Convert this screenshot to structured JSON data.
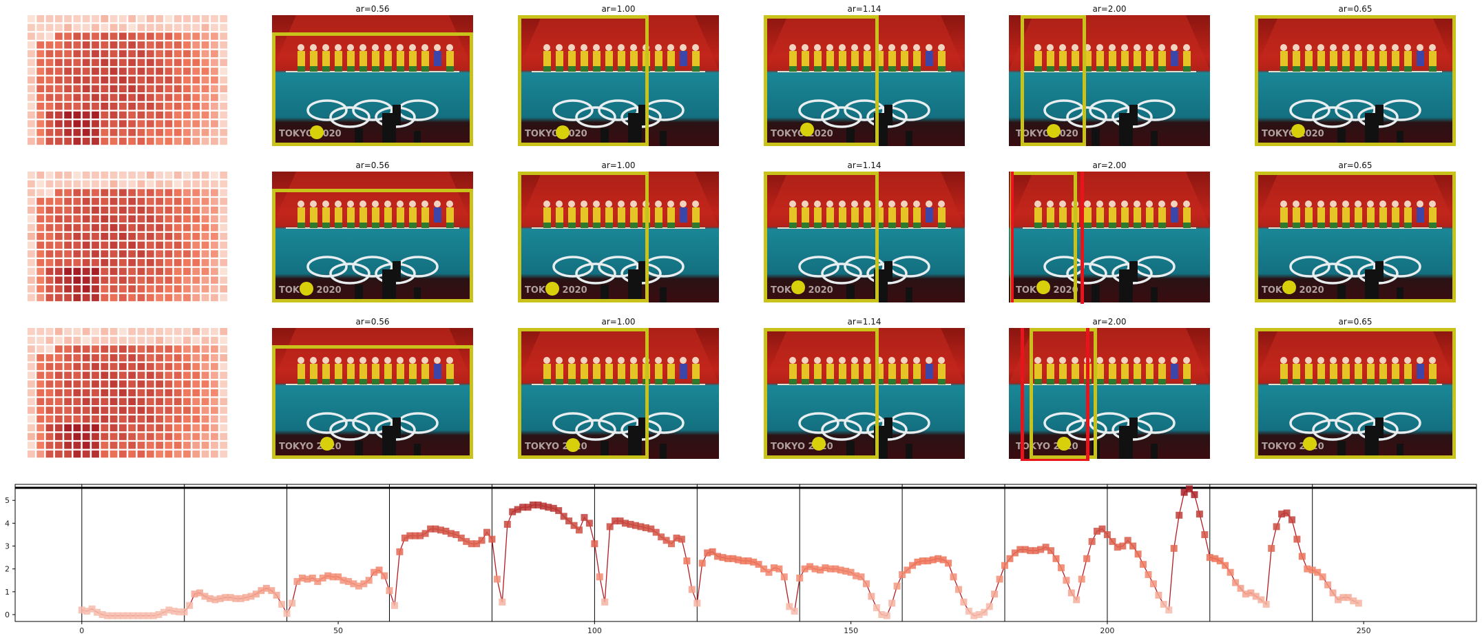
{
  "colors": {
    "box": "#c8c21a",
    "box_alt": "#e8131b",
    "marker": "#d9d00c",
    "court_top": "#b41d12",
    "court_floor": "#157d8c",
    "line": "#b51a22",
    "heat_low": "#fbe6dc",
    "heat_high": "#a51d24"
  },
  "panels": {
    "rows": [
      {
        "titles": [
          "ar=0.56",
          "ar=1.00",
          "ar=1.14",
          "ar=2.00",
          "ar=0.65"
        ],
        "red_boxes": [
          0,
          0,
          0,
          0,
          0
        ]
      },
      {
        "titles": [
          "ar=0.56",
          "ar=1.00",
          "ar=1.14",
          "ar=2.00",
          "ar=0.65"
        ],
        "red_boxes": [
          0,
          0,
          0,
          1,
          0
        ]
      },
      {
        "titles": [
          "ar=0.56",
          "ar=1.00",
          "ar=1.14",
          "ar=2.00",
          "ar=0.65"
        ],
        "red_boxes": [
          0,
          0,
          0,
          1,
          0
        ]
      }
    ],
    "watermark": "TOKYO 2020"
  },
  "chart_data": {
    "type": "line",
    "xlim": [
      -13,
      272
    ],
    "ylim": [
      -0.3,
      5.7
    ],
    "xticks": [
      0,
      50,
      100,
      150,
      200,
      250
    ],
    "yticks": [
      0,
      1,
      2,
      3,
      4,
      5
    ],
    "vlines": [
      0,
      20,
      40,
      60,
      80,
      100,
      120,
      140,
      160,
      180,
      200,
      220,
      240
    ],
    "hline": 5.55,
    "grid": false,
    "series": [
      {
        "x_start": 0,
        "x_step": 1,
        "values": [
          0.2,
          0.15,
          0.25,
          0.1,
          0.0,
          -0.05,
          -0.05,
          -0.05,
          -0.05,
          -0.05,
          -0.05,
          -0.05,
          -0.05,
          -0.05,
          -0.05,
          0.0,
          0.1,
          0.2,
          0.15,
          0.12,
          0.12,
          0.4,
          0.9,
          0.95,
          0.8,
          0.7,
          0.65,
          0.7,
          0.75,
          0.75,
          0.7,
          0.7,
          0.75,
          0.8,
          0.9,
          1.05,
          1.15,
          1.05,
          0.85,
          0.45,
          0.05,
          0.5,
          1.45,
          1.6,
          1.55,
          1.6,
          1.45,
          1.6,
          1.7,
          1.65,
          1.65,
          1.5,
          1.45,
          1.35,
          1.25,
          1.35,
          1.5,
          1.85,
          1.95,
          1.7,
          1.05,
          0.4,
          2.75,
          3.35,
          3.45,
          3.45,
          3.45,
          3.55,
          3.75,
          3.75,
          3.7,
          3.65,
          3.55,
          3.5,
          3.35,
          3.2,
          3.1,
          3.1,
          3.25,
          3.6,
          3.3,
          1.55,
          0.55,
          3.95,
          4.5,
          4.6,
          4.7,
          4.7,
          4.8,
          4.8,
          4.75,
          4.7,
          4.65,
          4.55,
          4.3,
          4.1,
          3.9,
          3.7,
          4.25,
          4.0,
          3.1,
          1.65,
          0.55,
          3.85,
          4.1,
          4.1,
          4.0,
          3.95,
          3.9,
          3.85,
          3.8,
          3.75,
          3.6,
          3.4,
          3.25,
          3.1,
          3.35,
          3.3,
          2.35,
          1.1,
          0.5,
          2.25,
          2.7,
          2.75,
          2.55,
          2.5,
          2.45,
          2.45,
          2.4,
          2.35,
          2.35,
          2.3,
          2.2,
          2.0,
          1.85,
          2.05,
          2.0,
          1.65,
          0.35,
          0.15,
          1.6,
          2.0,
          2.1,
          2.0,
          1.95,
          2.05,
          2.0,
          2.0,
          1.95,
          1.9,
          1.85,
          1.7,
          1.65,
          1.35,
          0.8,
          0.3,
          0.0,
          -0.05,
          0.5,
          1.25,
          1.75,
          1.95,
          2.15,
          2.3,
          2.35,
          2.35,
          2.4,
          2.45,
          2.4,
          2.25,
          1.65,
          1.1,
          0.55,
          0.15,
          -0.05,
          0.0,
          0.1,
          0.35,
          0.9,
          1.55,
          2.15,
          2.45,
          2.7,
          2.85,
          2.85,
          2.8,
          2.8,
          2.85,
          2.95,
          2.8,
          2.45,
          2.05,
          1.5,
          0.95,
          0.65,
          1.55,
          2.45,
          3.2,
          3.65,
          3.75,
          3.5,
          3.2,
          2.95,
          3.0,
          3.25,
          3.0,
          2.65,
          2.2,
          1.75,
          1.35,
          0.85,
          0.45,
          0.2,
          2.9,
          4.35,
          5.35,
          5.5,
          5.25,
          4.4,
          3.5,
          2.5,
          2.45,
          2.35,
          2.15,
          1.85,
          1.4,
          1.15,
          0.9,
          0.95,
          0.8,
          0.65,
          0.45,
          2.9,
          3.85,
          4.4,
          4.45,
          4.15,
          3.3,
          2.55,
          2.0,
          1.95,
          1.85,
          1.65,
          1.3,
          0.95,
          0.65,
          0.75,
          0.75,
          0.6,
          0.5
        ],
        "marker": "square"
      }
    ]
  }
}
